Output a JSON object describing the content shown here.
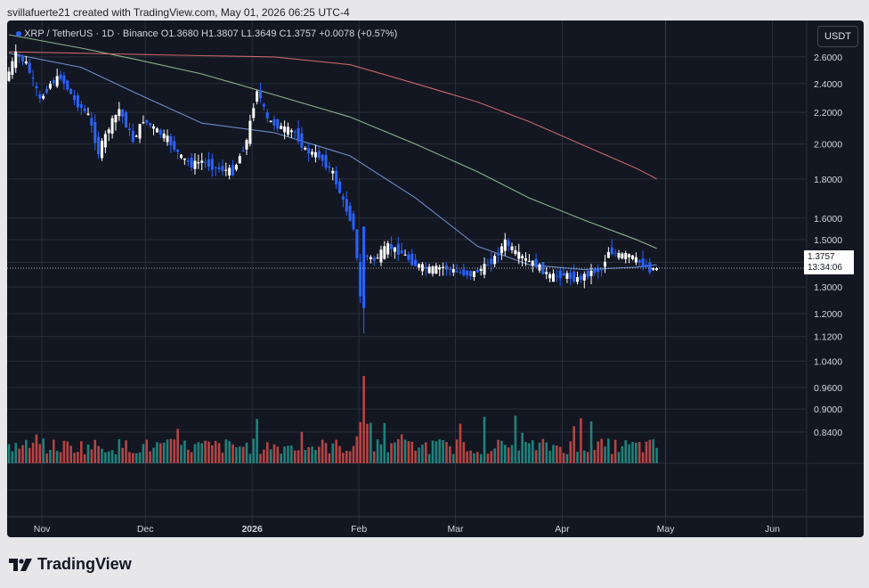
{
  "header": {
    "text": "svillafuerte21 created with TradingView.com, May 01, 2026 06:25 UTC-4"
  },
  "legend": {
    "symbol": "XRP / TetherUS · 1D · Binance",
    "open_label": "O",
    "open": "1.3680",
    "high_label": "H",
    "high": "1.3807",
    "low_label": "L",
    "low": "1.3649",
    "close_label": "C",
    "close": "1.3757",
    "change": "+0.0078 (+0.57%)"
  },
  "currency": "USDT",
  "price_label": {
    "price": "1.3757",
    "countdown": "13:34:06"
  },
  "logo": {
    "text": "TradingView",
    "icon": "tradingview-logo-icon"
  },
  "colors": {
    "background": "#131722",
    "grid": "#2a2e39",
    "up_candle": "#ffffff",
    "down_candle": "#2962ff",
    "volume_up": "#26a69a",
    "volume_down": "#ef5350",
    "ma_blue": "#7b9fe0",
    "ma_green": "#9fcf9a",
    "ma_red": "#e57373"
  },
  "chart_data": {
    "type": "candlestick",
    "symbol": "XRP / TetherUS",
    "interval": "1D",
    "exchange": "Binance",
    "y_scale": "log",
    "ylim": [
      0.8,
      2.78
    ],
    "y_ticks": [
      "2.6000",
      "2.4000",
      "2.2000",
      "2.0000",
      "1.8000",
      "1.6000",
      "1.5000",
      "1.4000",
      "1.3000",
      "1.2000",
      "1.1200",
      "1.0400",
      "0.9600",
      "0.9000",
      "0.8400"
    ],
    "x_ticks": [
      "Nov",
      "Dec",
      "2026",
      "Feb",
      "Mar",
      "Apr",
      "May",
      "Jun"
    ],
    "grid": true,
    "moving_averages": [
      {
        "color": "#7b9fe0",
        "points": [
          [
            "2025-10-25",
            2.63
          ],
          [
            "2025-11-15",
            2.52
          ],
          [
            "2025-12-01",
            2.33
          ],
          [
            "2025-12-20",
            2.13
          ],
          [
            "2026-01-10",
            2.07
          ],
          [
            "2026-02-01",
            1.93
          ],
          [
            "2026-02-20",
            1.7
          ],
          [
            "2026-03-10",
            1.47
          ],
          [
            "2026-03-25",
            1.39
          ],
          [
            "2026-04-10",
            1.37
          ],
          [
            "2026-04-25",
            1.38
          ],
          [
            "2026-05-01",
            1.39
          ]
        ]
      },
      {
        "color": "#9fcf9a",
        "points": [
          [
            "2025-10-25",
            2.78
          ],
          [
            "2025-11-15",
            2.67
          ],
          [
            "2025-12-01",
            2.58
          ],
          [
            "2025-12-20",
            2.47
          ],
          [
            "2026-01-10",
            2.32
          ],
          [
            "2026-02-01",
            2.17
          ],
          [
            "2026-02-20",
            2.0
          ],
          [
            "2026-03-10",
            1.84
          ],
          [
            "2026-03-25",
            1.7
          ],
          [
            "2026-04-10",
            1.59
          ],
          [
            "2026-04-25",
            1.5
          ],
          [
            "2026-05-01",
            1.46
          ]
        ]
      },
      {
        "color": "#e57373",
        "points": [
          [
            "2025-10-25",
            2.64
          ],
          [
            "2025-11-15",
            2.63
          ],
          [
            "2025-12-01",
            2.62
          ],
          [
            "2025-12-20",
            2.61
          ],
          [
            "2026-01-10",
            2.6
          ],
          [
            "2026-02-01",
            2.54
          ],
          [
            "2026-02-20",
            2.4
          ],
          [
            "2026-03-10",
            2.27
          ],
          [
            "2026-03-25",
            2.14
          ],
          [
            "2026-04-10",
            1.99
          ],
          [
            "2026-04-25",
            1.86
          ],
          [
            "2026-05-01",
            1.8
          ]
        ]
      }
    ],
    "close_path": [
      [
        "2025-10-25",
        2.42
      ],
      [
        "2025-10-28",
        2.62
      ],
      [
        "2025-10-31",
        2.55
      ],
      [
        "2025-11-04",
        2.28
      ],
      [
        "2025-11-07",
        2.4
      ],
      [
        "2025-11-10",
        2.45
      ],
      [
        "2025-11-14",
        2.28
      ],
      [
        "2025-11-18",
        2.18
      ],
      [
        "2025-11-21",
        1.95
      ],
      [
        "2025-11-24",
        2.1
      ],
      [
        "2025-11-27",
        2.22
      ],
      [
        "2025-12-01",
        2.02
      ],
      [
        "2025-12-04",
        2.15
      ],
      [
        "2025-12-08",
        2.08
      ],
      [
        "2025-12-11",
        2.03
      ],
      [
        "2025-12-15",
        1.92
      ],
      [
        "2025-12-18",
        1.88
      ],
      [
        "2025-12-21",
        1.9
      ],
      [
        "2025-12-25",
        1.86
      ],
      [
        "2025-12-30",
        1.84
      ],
      [
        "2026-01-03",
        2.02
      ],
      [
        "2026-01-06",
        2.36
      ],
      [
        "2026-01-09",
        2.15
      ],
      [
        "2026-01-13",
        2.1
      ],
      [
        "2026-01-17",
        2.07
      ],
      [
        "2026-01-20",
        1.96
      ],
      [
        "2026-01-24",
        1.93
      ],
      [
        "2026-01-28",
        1.83
      ],
      [
        "2026-01-31",
        1.68
      ],
      [
        "2026-02-03",
        1.56
      ],
      [
        "2026-02-05",
        1.26
      ],
      [
        "2026-02-06",
        1.43
      ],
      [
        "2026-02-09",
        1.41
      ],
      [
        "2026-02-13",
        1.47
      ],
      [
        "2026-02-17",
        1.44
      ],
      [
        "2026-02-21",
        1.39
      ],
      [
        "2026-02-25",
        1.37
      ],
      [
        "2026-03-01",
        1.38
      ],
      [
        "2026-03-05",
        1.36
      ],
      [
        "2026-03-09",
        1.35
      ],
      [
        "2026-03-13",
        1.38
      ],
      [
        "2026-03-16",
        1.42
      ],
      [
        "2026-03-19",
        1.49
      ],
      [
        "2026-03-22",
        1.44
      ],
      [
        "2026-03-25",
        1.41
      ],
      [
        "2026-03-28",
        1.39
      ],
      [
        "2026-04-01",
        1.34
      ],
      [
        "2026-04-05",
        1.35
      ],
      [
        "2026-04-09",
        1.33
      ],
      [
        "2026-04-13",
        1.36
      ],
      [
        "2026-04-16",
        1.37
      ],
      [
        "2026-04-18",
        1.45
      ],
      [
        "2026-04-21",
        1.43
      ],
      [
        "2026-04-24",
        1.43
      ],
      [
        "2026-04-27",
        1.4
      ],
      [
        "2026-04-30",
        1.37
      ],
      [
        "2026-05-01",
        1.3757
      ]
    ],
    "volume_note": "volume bars on separate scale, spike near 2026-02-05"
  }
}
